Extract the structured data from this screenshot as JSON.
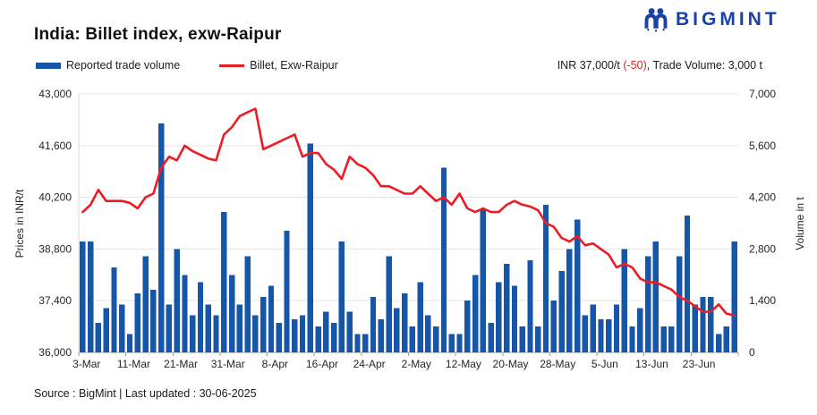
{
  "header": {
    "title": "India: Billet index, exw-Raipur",
    "brand": "BIGMINT"
  },
  "legend": [
    {
      "label": "Reported trade volume",
      "type": "bar",
      "color": "#1656a8"
    },
    {
      "label": "Billet, Exw-Raipur",
      "type": "line",
      "color": "#ed1c24"
    }
  ],
  "annotation": {
    "prefix": "INR 37,000/t ",
    "change": "(-50)",
    "suffix": ", Trade Volume: 3,000 t",
    "change_color": "#ed1c24"
  },
  "footer": {
    "source": "Source : BigMint | Last updated : 30-06-2025"
  },
  "colors": {
    "bar_blue": "#1656a8",
    "line_red": "#ed1c24",
    "logo_blue": "#1b41a8",
    "grid": "#e4e4e4",
    "baseline": "#9e9e9e",
    "axis_text": "#262626"
  },
  "chart_data": {
    "type": "bar",
    "subtype": "combo-bar-line",
    "grid": true,
    "legend_position": "top-left",
    "x_tick_labels": [
      "3-Mar",
      "11-Mar",
      "21-Mar",
      "31-Mar",
      "8-Apr",
      "16-Apr",
      "24-Apr",
      "2-May",
      "12-May",
      "20-May",
      "28-May",
      "5-Jun",
      "13-Jun",
      "23-Jun"
    ],
    "x_tick_indices": [
      0,
      6,
      12,
      18,
      24,
      30,
      36,
      42,
      48,
      54,
      60,
      66,
      72,
      78
    ],
    "left_axis": {
      "title": "Prices in INR/t",
      "min": 36000,
      "max": 43000,
      "ticks": [
        "43,000",
        "41,600",
        "40,200",
        "38,800",
        "37,400",
        "36,000"
      ]
    },
    "right_axis": {
      "title": "Volume in t",
      "min": 0,
      "max": 7000,
      "ticks": [
        "7,000",
        "5,600",
        "4,200",
        "2,800",
        "1,400",
        "0"
      ]
    },
    "series": [
      {
        "name": "Reported trade volume",
        "type": "bar",
        "axis": "right",
        "color": "#1656a8",
        "values": [
          3000,
          3000,
          800,
          1200,
          2300,
          1300,
          500,
          1600,
          2600,
          1700,
          6200,
          1300,
          2800,
          2100,
          1000,
          1900,
          1300,
          1000,
          3800,
          2100,
          1300,
          2600,
          1000,
          1500,
          1800,
          800,
          3300,
          900,
          1000,
          5650,
          700,
          1100,
          800,
          3000,
          1100,
          500,
          500,
          1500,
          900,
          2600,
          1200,
          1600,
          700,
          1900,
          1000,
          700,
          5000,
          500,
          500,
          1400,
          2100,
          3900,
          800,
          1900,
          2400,
          1800,
          700,
          2500,
          700,
          4000,
          1400,
          2200,
          2800,
          3600,
          1000,
          1300,
          900,
          900,
          1300,
          2800,
          700,
          1200,
          2600,
          3000,
          700,
          700,
          2600,
          3700,
          1300,
          1500,
          1500,
          500,
          700,
          3000
        ]
      },
      {
        "name": "Billet, Exw-Raipur",
        "type": "line",
        "axis": "left",
        "color": "#ed1c24",
        "values": [
          39800,
          40000,
          40400,
          40100,
          40100,
          40100,
          40050,
          39900,
          40200,
          40300,
          41000,
          41300,
          41200,
          41600,
          41450,
          41350,
          41250,
          41200,
          41900,
          42100,
          42400,
          42500,
          42600,
          41500,
          41600,
          41700,
          41800,
          41900,
          41300,
          41400,
          41400,
          41100,
          40950,
          40700,
          41300,
          41100,
          41000,
          40800,
          40500,
          40500,
          40400,
          40300,
          40300,
          40500,
          40300,
          40100,
          40200,
          40000,
          40300,
          39900,
          39800,
          39900,
          39800,
          39800,
          40000,
          40100,
          40000,
          39950,
          39850,
          39500,
          39400,
          39100,
          39000,
          39150,
          38900,
          38950,
          38800,
          38650,
          38300,
          38400,
          38300,
          38000,
          37900,
          37900,
          37800,
          37700,
          37500,
          37400,
          37250,
          37100,
          37100,
          37300,
          37050,
          37000
        ]
      }
    ]
  }
}
